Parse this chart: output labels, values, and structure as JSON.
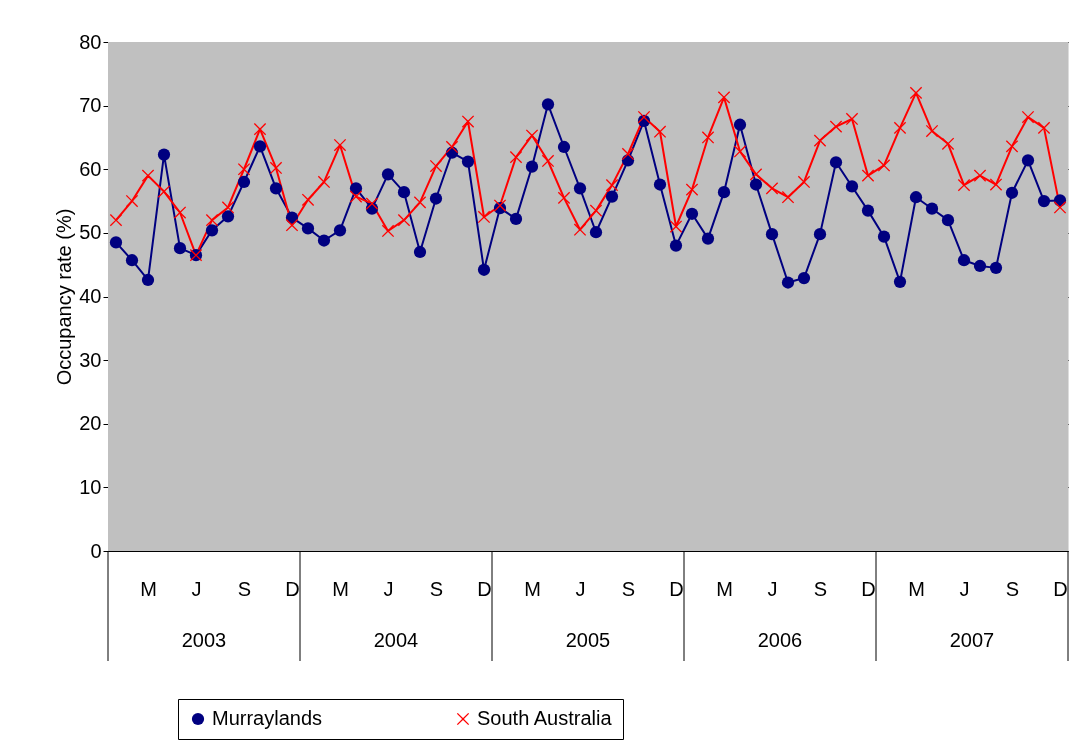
{
  "chart_data": {
    "type": "line",
    "ylabel": "Occupancy rate (%)",
    "categories": [
      null,
      null,
      "M",
      null,
      null,
      "J",
      null,
      null,
      "S",
      null,
      null,
      "D",
      null,
      null,
      "M",
      null,
      null,
      "J",
      null,
      null,
      "S",
      null,
      null,
      "D",
      null,
      null,
      "M",
      null,
      null,
      "J",
      null,
      null,
      "S",
      null,
      null,
      "D",
      null,
      null,
      "M",
      null,
      null,
      "J",
      null,
      null,
      "S",
      null,
      null,
      "D",
      null,
      null,
      "M",
      null,
      null,
      "J",
      null,
      null,
      "S",
      null,
      null,
      "D"
    ],
    "series": [
      {
        "name": "Murraylands",
        "color": "#000080",
        "marker": "circle",
        "values": [
          48.5,
          45.7,
          42.6,
          62.3,
          47.6,
          46.5,
          50.4,
          52.6,
          58,
          63.6,
          57,
          52.4,
          50.7,
          48.8,
          50.4,
          57,
          53.8,
          59.2,
          56.4,
          47,
          55.4,
          62.6,
          61.2,
          44.2,
          53.9,
          52.2,
          60.4,
          70.2,
          63.5,
          57,
          50.1,
          55.7,
          61.4,
          67.6,
          57.6,
          48,
          53,
          49.1,
          56.4,
          67,
          57.6,
          49.8,
          42.2,
          42.9,
          49.8,
          61.1,
          57.3,
          53.5,
          49.4,
          42.3,
          55.6,
          53.8,
          52,
          45.7,
          44.8,
          44.5,
          56.3,
          61.4,
          55,
          55.1
        ]
      },
      {
        "name": "South Australia",
        "color": "#ff0000",
        "marker": "cross",
        "values": [
          52,
          55,
          59,
          56.5,
          53.2,
          46.5,
          52,
          54,
          60,
          66.3,
          60.2,
          51.2,
          55.2,
          58,
          63.8,
          55.7,
          54.6,
          50.3,
          52,
          54.8,
          60.5,
          63.5,
          67.5,
          52.5,
          54.3,
          61.9,
          65.3,
          61.3,
          55.5,
          50.5,
          53.5,
          57.5,
          62.4,
          68.2,
          65.9,
          51,
          56.8,
          65,
          71.3,
          62.8,
          59.2,
          57,
          55.6,
          58,
          64.5,
          66.7,
          67.9,
          59,
          60.6,
          66.5,
          72,
          66,
          64,
          57.5,
          59,
          57.6,
          63.6,
          68.2,
          66.5,
          54
        ]
      }
    ],
    "ylim": [
      0,
      80
    ],
    "yticks": [
      0,
      10,
      20,
      30,
      40,
      50,
      60,
      70,
      80
    ],
    "grid": "y",
    "legend": "bottom",
    "line_style": "solid",
    "annotations": [
      "2003",
      "2004",
      "2005",
      "2006",
      "2007"
    ]
  }
}
